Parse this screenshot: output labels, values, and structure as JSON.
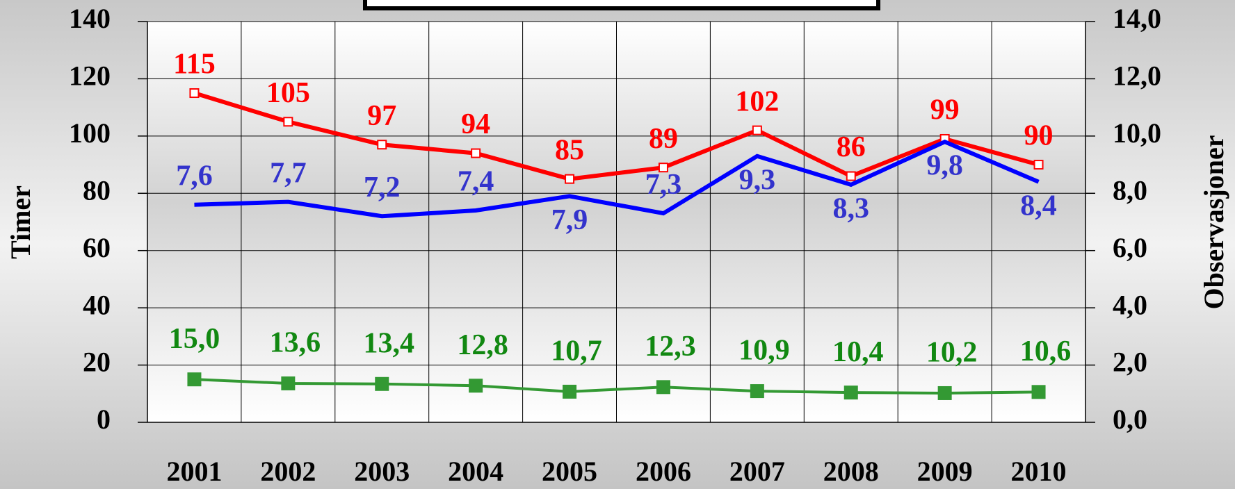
{
  "chart_data": {
    "type": "line",
    "y_label": "Timer",
    "y2_label": "Observasjoner",
    "categories": [
      "2001",
      "2002",
      "2003",
      "2004",
      "2005",
      "2006",
      "2007",
      "2008",
      "2009",
      "2010"
    ],
    "ylim": [
      0,
      140
    ],
    "yticks": [
      0,
      20,
      40,
      60,
      80,
      100,
      120,
      140
    ],
    "y2lim": [
      0,
      14
    ],
    "y2ticks": [
      {
        "value": 0,
        "label": "0,0"
      },
      {
        "value": 2,
        "label": "2,0"
      },
      {
        "value": 4,
        "label": "4,0"
      },
      {
        "value": 6,
        "label": "6,0"
      },
      {
        "value": 8,
        "label": "8,0"
      },
      {
        "value": 10,
        "label": "10,0"
      },
      {
        "value": 12,
        "label": "12,0"
      },
      {
        "value": 14,
        "label": "14,0"
      }
    ],
    "grid": true,
    "series": [
      {
        "color": "#ff0000",
        "marker": "hollow-square",
        "values": [
          115,
          105,
          97,
          94,
          85,
          89,
          102,
          86,
          99,
          90
        ]
      },
      {
        "color": "#0000ff",
        "axis": "y2",
        "values": [
          7.6,
          7.7,
          7.2,
          7.4,
          7.9,
          7.3,
          9.3,
          8.3,
          9.8,
          8.4
        ],
        "value_labels": [
          "7,6",
          "7,7",
          "7,2",
          "7,4",
          "7,9",
          "7,3",
          "9,3",
          "8,3",
          "9,8",
          "8,4"
        ]
      },
      {
        "color": "#339933",
        "marker": "filled-square",
        "values": [
          15.0,
          13.6,
          13.4,
          12.8,
          10.7,
          12.3,
          10.9,
          10.4,
          10.2,
          10.6
        ],
        "value_labels": [
          "15,0",
          "13,6",
          "13,4",
          "12,8",
          "10,7",
          "12,3",
          "10,9",
          "10,4",
          "10,2",
          "10,6"
        ]
      }
    ]
  }
}
